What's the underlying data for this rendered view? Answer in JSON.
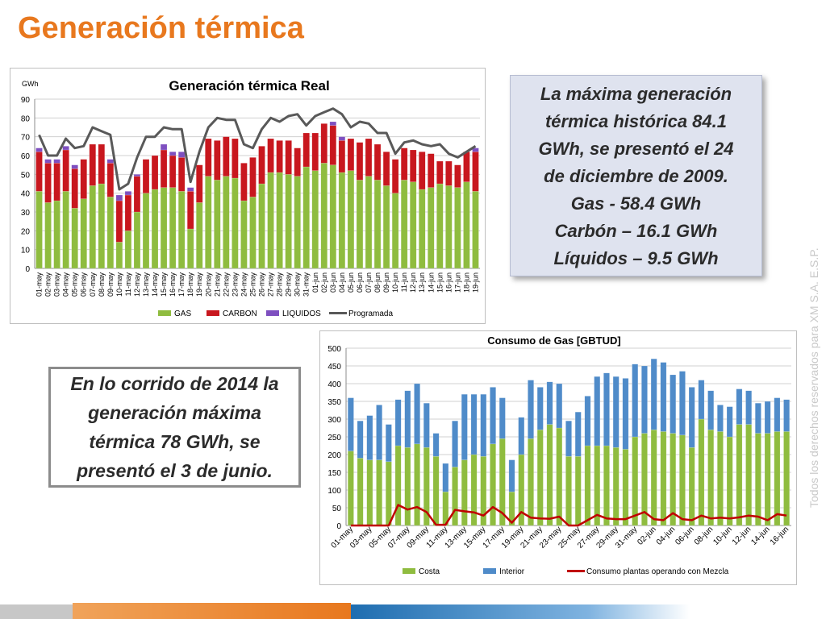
{
  "page": {
    "title": "Generación térmica",
    "note_top": [
      "La máxima generación",
      "térmica histórica 84.1",
      "GWh, se presentó el 24",
      "de diciembre de 2009.",
      "Gas - 58.4 GWh",
      "Carbón – 16.1 GWh",
      "Líquidos – 9.5 GWh"
    ],
    "note_bottom": "En lo corrido de 2014 la generación máxima térmica 78 GWh, se presentó el 3 de junio.",
    "vertical_text": "Todos los derechos reservados para XM S.A. E.S.P.",
    "colors": {
      "title": "#e8781e",
      "gas": "#8fbc3f",
      "carbon": "#c8171e",
      "liquidos": "#7e4fc0",
      "programada": "#595959",
      "costa": "#8fbc3f",
      "interior": "#4f8bc9",
      "mezcla": "#c00000"
    }
  },
  "chart_data": [
    {
      "type": "bar",
      "stacked": true,
      "title": "Generación térmica Real",
      "ylabel": "GWh",
      "ylim": [
        0,
        90
      ],
      "yticks": [
        0,
        10,
        20,
        30,
        40,
        50,
        60,
        70,
        80,
        90
      ],
      "grid": true,
      "legend": "bottom",
      "categories": [
        "01-may",
        "02-may",
        "03-may",
        "04-may",
        "05-may",
        "06-may",
        "07-may",
        "08-may",
        "09-may",
        "10-may",
        "11-may",
        "12-may",
        "13-may",
        "14-may",
        "15-may",
        "16-may",
        "17-may",
        "18-may",
        "19-may",
        "20-may",
        "21-may",
        "22-may",
        "23-may",
        "24-may",
        "25-may",
        "26-may",
        "27-may",
        "28-may",
        "29-may",
        "30-may",
        "31-may",
        "01-jun",
        "02-jun",
        "03-jun",
        "04-jun",
        "05-jun",
        "06-jun",
        "07-jun",
        "08-jun",
        "09-jun",
        "10-jun",
        "11-jun",
        "12-jun",
        "13-jun",
        "14-jun",
        "15-jun",
        "16-jun",
        "17-jun",
        "18-jun",
        "19-jun"
      ],
      "series": [
        {
          "name": "GAS",
          "kind": "bar",
          "values": [
            41,
            35,
            36,
            41,
            32,
            37,
            44,
            45,
            38,
            14,
            20,
            30,
            40,
            42,
            43,
            43,
            41,
            21,
            35,
            49,
            47,
            49,
            48,
            36,
            38,
            45,
            51,
            51,
            50,
            49,
            54,
            52,
            56,
            55,
            51,
            52,
            47,
            49,
            47,
            44,
            40,
            47,
            46,
            42,
            43,
            45,
            44,
            43,
            46,
            41
          ]
        },
        {
          "name": "CARBON",
          "kind": "bar",
          "values": [
            21,
            21,
            20,
            22,
            21,
            21,
            22,
            21,
            18,
            22,
            19,
            19,
            18,
            18,
            20,
            17,
            18,
            20,
            20,
            20,
            21,
            21,
            21,
            20,
            21,
            20,
            18,
            17,
            18,
            15,
            18,
            20,
            21,
            21,
            17,
            17,
            20,
            20,
            19,
            18,
            18,
            17,
            17,
            20,
            18,
            12,
            13,
            12,
            16,
            21
          ]
        },
        {
          "name": "LIQUIDOS",
          "kind": "bar",
          "values": [
            2,
            2,
            2,
            2,
            2,
            0,
            0,
            0,
            2,
            3,
            2,
            1,
            0,
            0,
            3,
            2,
            3,
            2,
            0,
            0,
            0,
            0,
            0,
            0,
            0,
            0,
            0,
            0,
            0,
            0,
            0,
            0,
            0,
            2,
            2,
            0,
            0,
            0,
            0,
            0,
            0,
            0,
            0,
            0,
            0,
            0,
            0,
            0,
            0,
            2
          ]
        },
        {
          "name": "Programada",
          "kind": "line",
          "values": [
            71,
            60,
            60,
            69,
            64,
            65,
            75,
            73,
            71,
            42,
            45,
            59,
            70,
            70,
            75,
            74,
            74,
            46,
            62,
            75,
            80,
            79,
            79,
            66,
            64,
            74,
            80,
            78,
            81,
            82,
            76,
            81,
            83,
            85,
            82,
            75,
            78,
            77,
            72,
            72,
            61,
            67,
            68,
            66,
            65,
            66,
            61,
            59,
            62,
            65
          ]
        }
      ]
    },
    {
      "type": "bar",
      "stacked": true,
      "title": "Consumo de Gas [GBTUD]",
      "ylim": [
        0,
        500
      ],
      "yticks": [
        0,
        50,
        100,
        150,
        200,
        250,
        300,
        350,
        400,
        450,
        500
      ],
      "grid": true,
      "legend": "bottom",
      "categories": [
        "01-may",
        "02-may",
        "03-may",
        "04-may",
        "05-may",
        "06-may",
        "07-may",
        "08-may",
        "09-may",
        "10-may",
        "11-may",
        "12-may",
        "13-may",
        "14-may",
        "15-may",
        "16-may",
        "17-may",
        "18-may",
        "19-may",
        "20-may",
        "21-may",
        "22-may",
        "23-may",
        "24-may",
        "25-may",
        "26-may",
        "27-may",
        "28-may",
        "29-may",
        "30-may",
        "31-may",
        "01-jun",
        "02-jun",
        "03-jun",
        "04-jun",
        "05-jun",
        "06-jun",
        "07-jun",
        "08-jun",
        "09-jun",
        "10-jun",
        "11-jun",
        "12-jun",
        "13-jun",
        "14-jun",
        "15-jun",
        "16-jun"
      ],
      "category_labels_shown": [
        "01-may",
        "03-may",
        "05-may",
        "07-may",
        "09-may",
        "11-may",
        "13-may",
        "15-may",
        "17-may",
        "19-may",
        "21-may",
        "23-may",
        "25-may",
        "27-may",
        "29-may",
        "31-may",
        "02-jun",
        "04-jun",
        "06-jun",
        "08-jun",
        "10-jun",
        "12-jun",
        "14-jun",
        "16-jun"
      ],
      "series": [
        {
          "name": "Costa",
          "kind": "bar",
          "values": [
            210,
            190,
            185,
            185,
            180,
            225,
            220,
            230,
            220,
            195,
            95,
            165,
            185,
            200,
            195,
            230,
            245,
            95,
            200,
            245,
            270,
            285,
            275,
            195,
            195,
            225,
            225,
            225,
            220,
            215,
            250,
            260,
            270,
            265,
            260,
            255,
            220,
            300,
            270,
            265,
            250,
            285,
            285,
            260,
            260,
            265,
            265
          ]
        },
        {
          "name": "Interior",
          "kind": "bar",
          "values": [
            150,
            105,
            125,
            155,
            105,
            130,
            160,
            170,
            125,
            65,
            80,
            130,
            185,
            170,
            175,
            160,
            115,
            90,
            105,
            165,
            120,
            120,
            125,
            100,
            125,
            140,
            195,
            205,
            200,
            200,
            205,
            190,
            200,
            195,
            165,
            180,
            170,
            110,
            110,
            75,
            85,
            100,
            95,
            85,
            90,
            95,
            90
          ]
        },
        {
          "name": "Consumo plantas operando con Mezcla",
          "kind": "line",
          "values": [
            0,
            0,
            0,
            0,
            0,
            58,
            45,
            52,
            38,
            2,
            2,
            44,
            40,
            37,
            28,
            52,
            35,
            8,
            38,
            22,
            20,
            19,
            25,
            0,
            0,
            15,
            30,
            20,
            18,
            18,
            28,
            38,
            18,
            15,
            35,
            18,
            15,
            28,
            20,
            22,
            20,
            23,
            28,
            25,
            15,
            32,
            28
          ]
        }
      ]
    }
  ]
}
